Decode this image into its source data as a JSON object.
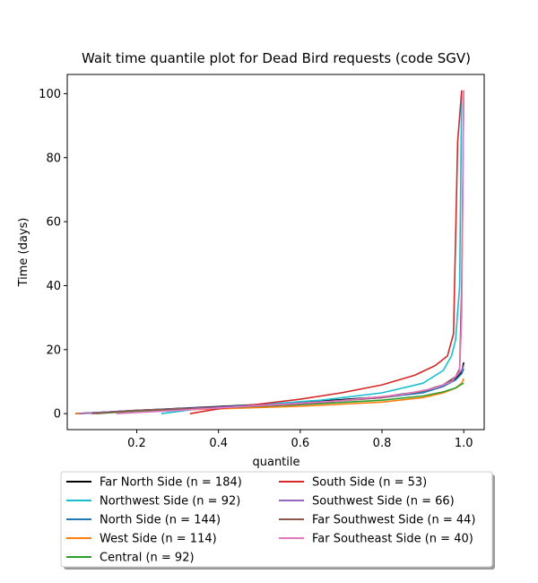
{
  "chart_data": {
    "type": "line",
    "title": "Wait time quantile plot for Dead Bird  requests (code SGV)",
    "xlabel": "quantile",
    "ylabel": "Time (days)",
    "xlim": [
      0.03,
      1.05
    ],
    "ylim": [
      -5,
      106
    ],
    "xticks": [
      0.2,
      0.4,
      0.6,
      0.8,
      1.0
    ],
    "xtick_labels": [
      "0.2",
      "0.4",
      "0.6",
      "0.8",
      "1.0"
    ],
    "yticks": [
      0,
      20,
      40,
      60,
      80,
      100
    ],
    "ytick_labels": [
      "0",
      "20",
      "40",
      "60",
      "80",
      "100"
    ],
    "grid": false,
    "legend_position": "bottom-outside",
    "series": [
      {
        "name": "Far North Side (n = 184)",
        "color": "#000000",
        "x": [
          0.05,
          0.2,
          0.4,
          0.6,
          0.8,
          0.9,
          0.95,
          0.98,
          0.995,
          1.0
        ],
        "y": [
          0,
          1,
          2.2,
          3.5,
          5.2,
          7,
          9,
          11,
          13,
          16
        ]
      },
      {
        "name": "Northwest Side (n = 92)",
        "color": "#17becf",
        "x": [
          0.26,
          0.35,
          0.5,
          0.65,
          0.8,
          0.9,
          0.95,
          0.97,
          0.98,
          0.99,
          0.995
        ],
        "y": [
          0,
          1.5,
          2.8,
          4.2,
          6.5,
          9.5,
          13.5,
          18,
          23,
          40,
          101
        ]
      },
      {
        "name": "North Side (n = 144)",
        "color": "#1f77b4",
        "x": [
          0.05,
          0.2,
          0.4,
          0.6,
          0.8,
          0.9,
          0.95,
          0.98,
          0.995,
          1.0
        ],
        "y": [
          0,
          1,
          2,
          3.2,
          5,
          6.5,
          8.5,
          10.5,
          12.5,
          14
        ]
      },
      {
        "name": "West Side (n = 114)",
        "color": "#ff7f0e",
        "x": [
          0.05,
          0.2,
          0.4,
          0.6,
          0.8,
          0.9,
          0.95,
          0.98,
          0.995,
          1.0
        ],
        "y": [
          0,
          0.8,
          1.5,
          2.3,
          3.6,
          5,
          6.5,
          8,
          9.5,
          11
        ]
      },
      {
        "name": "Central (n = 92)",
        "color": "#2ca02c",
        "x": [
          0.1,
          0.2,
          0.4,
          0.6,
          0.8,
          0.9,
          0.95,
          0.98,
          0.995,
          1.0
        ],
        "y": [
          0,
          0.8,
          1.8,
          2.8,
          4.2,
          5.5,
          6.8,
          8,
          9.2,
          9.5
        ]
      },
      {
        "name": "South Side (n = 53)",
        "color": "#d62728",
        "x": [
          0.33,
          0.4,
          0.5,
          0.6,
          0.7,
          0.8,
          0.88,
          0.93,
          0.96,
          0.975,
          0.985,
          0.995
        ],
        "y": [
          0,
          1.5,
          3,
          4.5,
          6.5,
          9,
          12,
          15,
          18,
          25,
          85,
          101
        ]
      },
      {
        "name": "Southwest Side (n = 66)",
        "color": "#9467bd",
        "x": [
          0.06,
          0.2,
          0.4,
          0.6,
          0.8,
          0.9,
          0.95,
          0.98,
          0.995,
          1.0
        ],
        "y": [
          0,
          1,
          2,
          3.2,
          5,
          7,
          9,
          11.5,
          13.5,
          15
        ]
      },
      {
        "name": "Far Southwest Side (n = 44)",
        "color": "#8c564b",
        "x": [
          0.09,
          0.2,
          0.4,
          0.6,
          0.8,
          0.9,
          0.95,
          0.98,
          0.99,
          0.995,
          1.0
        ],
        "y": [
          0,
          1,
          1.8,
          3,
          5,
          7,
          9,
          11.5,
          14,
          40,
          101
        ]
      },
      {
        "name": "Far Southeast Side (n = 40)",
        "color": "#e377c2",
        "x": [
          0.15,
          0.3,
          0.5,
          0.7,
          0.85,
          0.93,
          0.97,
          0.99,
          0.995,
          1.0
        ],
        "y": [
          0,
          1,
          2.5,
          4,
          6,
          8,
          10,
          13,
          30,
          101
        ]
      }
    ]
  }
}
